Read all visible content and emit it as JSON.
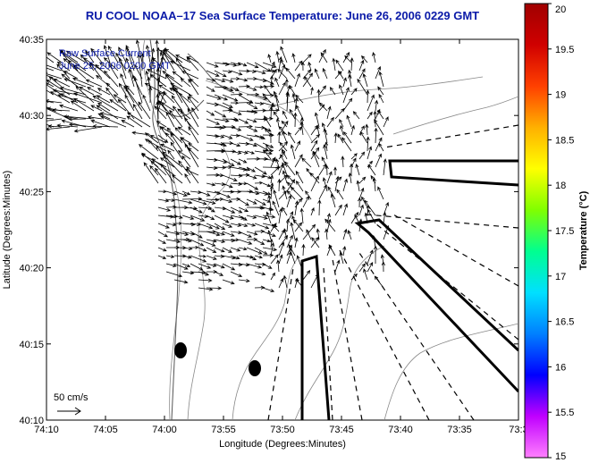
{
  "title": "RU COOL   NOAA–17  Sea Surface Temperature:  June 26, 2006 0229 GMT",
  "legend": {
    "line1": "Raw Surface Current",
    "line2": "June 25, 2006 0200 GMT",
    "scale_label": "50 cm/s"
  },
  "axes": {
    "xlabel": "Longitude (Degrees:Minutes)",
    "ylabel": "Latitude (Degrees:Minutes)",
    "xticks": [
      "74:10",
      "74:05",
      "74:00",
      "73:55",
      "73:50",
      "73:45",
      "73:40",
      "73:35",
      "73:3"
    ],
    "yticks": [
      "40:35",
      "40:30",
      "40:25",
      "40:20",
      "40:15",
      "40:10"
    ]
  },
  "colorbar": {
    "label": "Temperature (°C)",
    "ticks": [
      "20",
      "19.5",
      "19",
      "18.5",
      "18",
      "17.5",
      "17",
      "16.5",
      "16",
      "15.5",
      "15"
    ],
    "range": [
      15,
      20
    ],
    "colors": [
      "#ff80ff",
      "#c000ff",
      "#0000ff",
      "#0080ff",
      "#00e0ff",
      "#00ff90",
      "#80ff00",
      "#ffff00",
      "#ffb000",
      "#ff4000",
      "#d00000",
      "#a00000"
    ]
  },
  "colors": {
    "title": "#0a1aa8",
    "legend_text": "#0a1aa8"
  }
}
